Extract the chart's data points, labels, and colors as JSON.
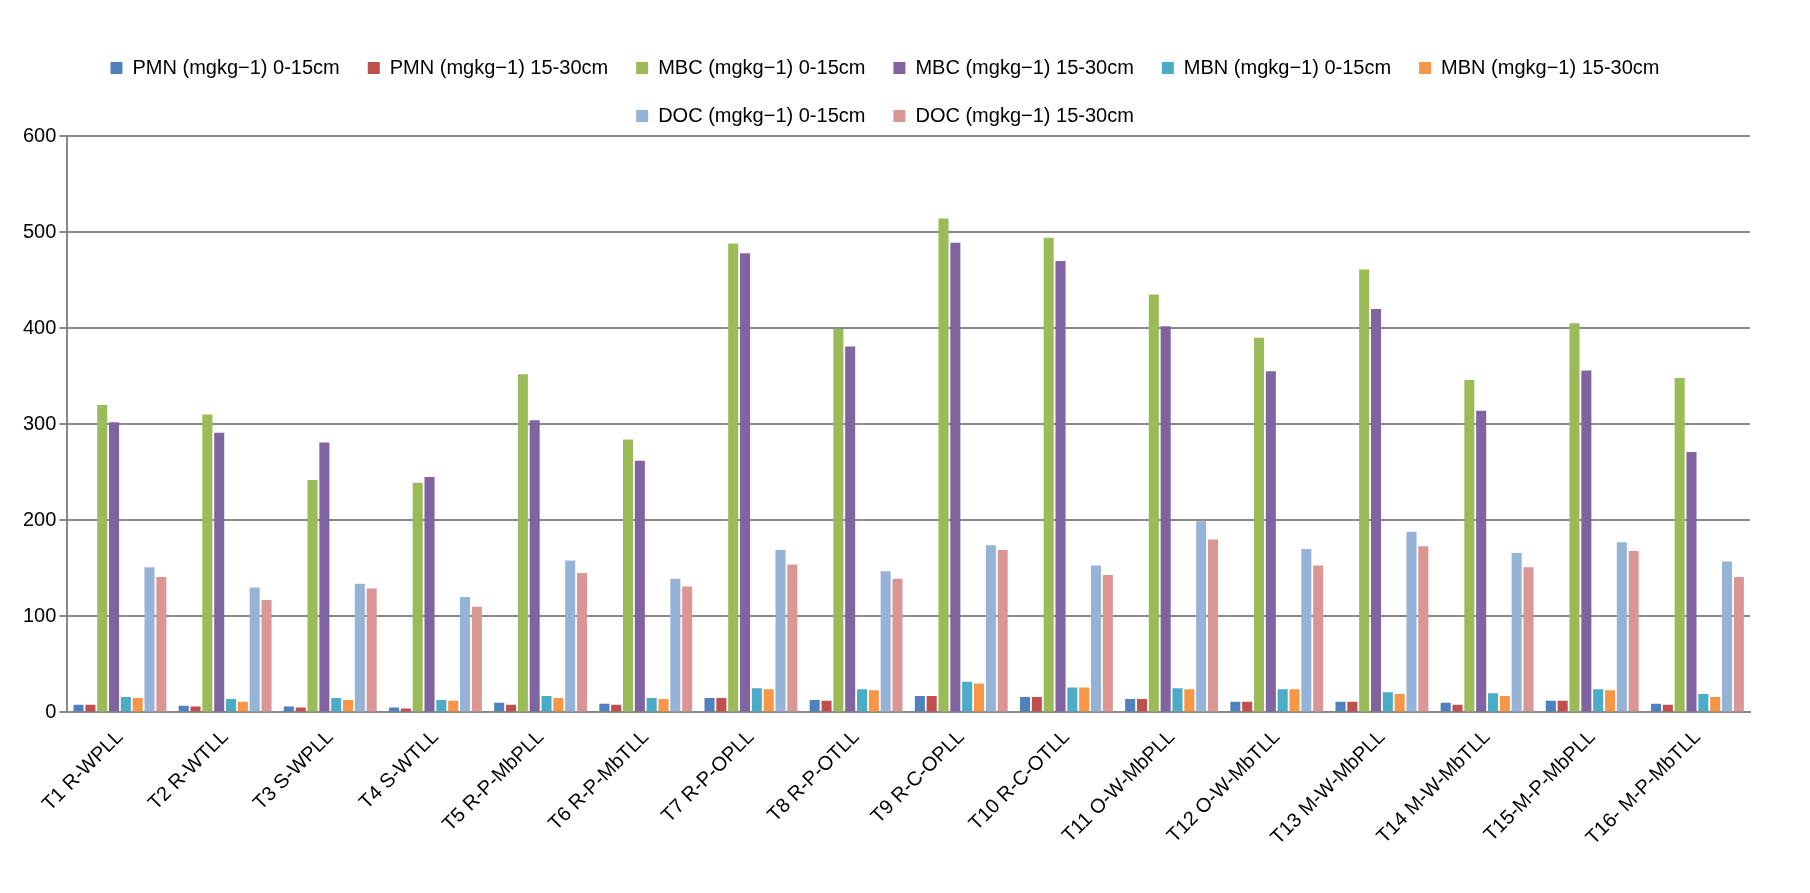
{
  "chart_data": {
    "type": "bar",
    "categories": [
      "T1 R-WPLL",
      "T2 R-WTLL",
      "T3 S-WPLL",
      "T4 S-WTLL",
      "T5 R-P-MbPLL",
      "T6 R-P-MbTLL",
      "T7 R-P-OPLL",
      "T8 R-P-OTLL",
      "T9 R-C-OPLL",
      "T10 R-C-OTLL",
      "T11 O-W-MbPLL",
      "T12 O-W-MbTLL",
      "T13 M-W-MbPLL",
      "T14 M-W-MbTLL",
      "T15-M-P-MbPLL",
      "T16- M-P-MbTLL"
    ],
    "series": [
      {
        "name": "PMN (mgkg−1) 0-15cm",
        "color": "#4f81bd",
        "values": [
          8,
          7,
          6,
          5,
          10,
          9,
          15,
          13,
          17,
          16,
          14,
          11,
          11,
          10,
          12,
          9
        ]
      },
      {
        "name": "PMN (mgkg−1) 15-30cm",
        "color": "#c0504d",
        "values": [
          8,
          6,
          5,
          4,
          8,
          8,
          15,
          12,
          17,
          16,
          14,
          11,
          11,
          8,
          12,
          8
        ]
      },
      {
        "name": "MBC (mgkg−1) 0-15cm",
        "color": "#9bbb59",
        "values": [
          320,
          310,
          242,
          239,
          352,
          284,
          488,
          399,
          514,
          494,
          435,
          390,
          461,
          346,
          405,
          348
        ]
      },
      {
        "name": "MBC (mgkg−1) 15-30cm",
        "color": "#8064a2",
        "values": [
          302,
          291,
          281,
          245,
          304,
          262,
          478,
          381,
          489,
          470,
          402,
          355,
          420,
          314,
          356,
          271
        ]
      },
      {
        "name": "MBN (mgkg−1) 0-15cm",
        "color": "#4bacc6",
        "values": [
          16,
          14,
          15,
          13,
          17,
          15,
          25,
          24,
          32,
          26,
          25,
          24,
          21,
          20,
          24,
          19
        ]
      },
      {
        "name": "MBN (mgkg−1) 15-30cm",
        "color": "#f79646",
        "values": [
          15,
          11,
          13,
          12,
          15,
          14,
          24,
          23,
          30,
          26,
          24,
          24,
          19,
          17,
          23,
          16
        ]
      },
      {
        "name": "DOC (mgkg−1) 0-15cm",
        "color": "#95b3d7",
        "values": [
          151,
          130,
          134,
          120,
          158,
          139,
          169,
          147,
          174,
          153,
          199,
          170,
          188,
          166,
          177,
          157
        ]
      },
      {
        "name": "DOC (mgkg−1) 15-30cm",
        "color": "#d99694",
        "values": [
          141,
          117,
          129,
          110,
          145,
          131,
          154,
          139,
          169,
          143,
          180,
          153,
          173,
          151,
          168,
          141
        ]
      }
    ],
    "ylim": [
      0,
      600
    ],
    "yticks": [
      0,
      100,
      200,
      300,
      400,
      500,
      600
    ],
    "grid": "y",
    "legend": "top"
  }
}
